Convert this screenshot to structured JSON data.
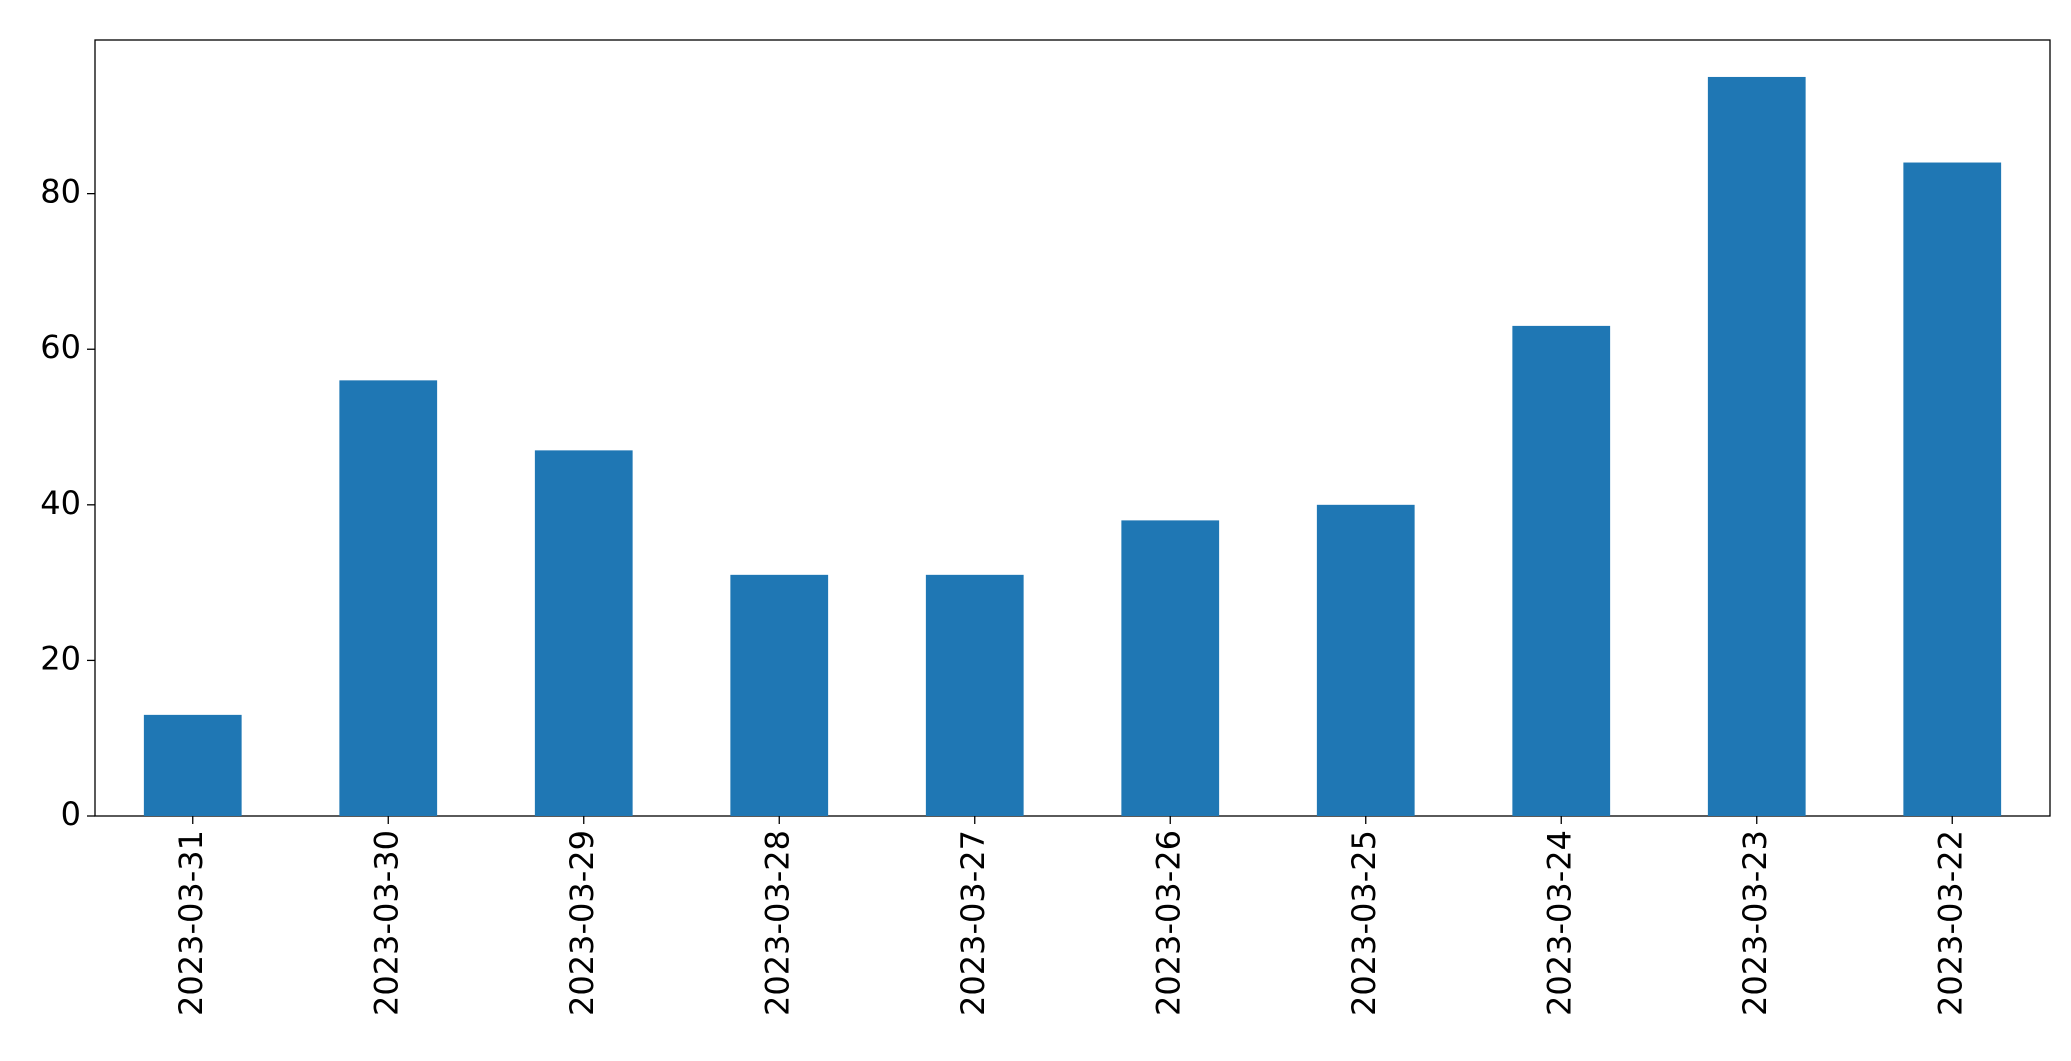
{
  "chart_data": {
    "type": "bar",
    "categories": [
      "2023-03-31",
      "2023-03-30",
      "2023-03-29",
      "2023-03-28",
      "2023-03-27",
      "2023-03-26",
      "2023-03-25",
      "2023-03-24",
      "2023-03-23",
      "2023-03-22"
    ],
    "values": [
      13,
      56,
      47,
      31,
      31,
      38,
      40,
      63,
      95,
      84
    ],
    "color": "#1f77b4",
    "ylim": [
      0,
      99.75
    ],
    "yticks": [
      0,
      20,
      40,
      60,
      80
    ],
    "grid": false
  }
}
